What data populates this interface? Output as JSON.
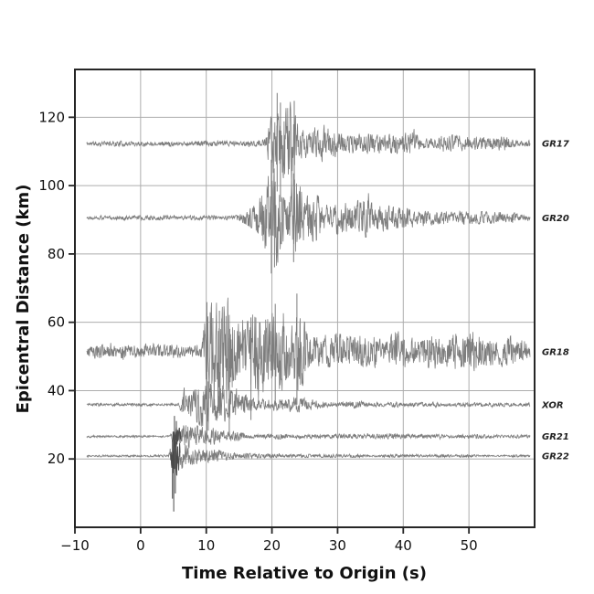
{
  "chart_data": {
    "type": "line",
    "variant": "seismic-record-section",
    "title": "",
    "xlabel": "Time Relative to Origin (s)",
    "ylabel": "Epicentral Distance (km)",
    "xlim": [
      -10,
      60
    ],
    "ylim": [
      0,
      134
    ],
    "xticks": [
      -10,
      0,
      10,
      20,
      30,
      40,
      50
    ],
    "yticks": [
      20,
      40,
      60,
      80,
      100,
      120
    ],
    "grid": true,
    "legend_position": "none",
    "colors": {
      "trace": "#7d7d7d",
      "trace_dark": "#4b4b4b",
      "grid": "#adadad",
      "spine": "#262626",
      "text": "#111111"
    },
    "stations": [
      {
        "name": "GR17",
        "distance_km": 112.3,
        "p_arrival_s": 19.5,
        "trace_window": [
          -8.2,
          59.3
        ],
        "seed": 11,
        "envelope": [
          [
            -8.2,
            0.7
          ],
          [
            17.5,
            0.7
          ],
          [
            19.0,
            1.2
          ],
          [
            19.6,
            5.0
          ],
          [
            20.3,
            11.5
          ],
          [
            21.2,
            13.5
          ],
          [
            22.0,
            10.0
          ],
          [
            23.2,
            11.5
          ],
          [
            24.2,
            7.5
          ],
          [
            25.5,
            5.5
          ],
          [
            27.0,
            5.0
          ],
          [
            29.0,
            4.8
          ],
          [
            30.5,
            3.6
          ],
          [
            32.0,
            2.6
          ],
          [
            33.5,
            3.2
          ],
          [
            35.5,
            2.8
          ],
          [
            37.5,
            2.4
          ],
          [
            39.5,
            3.0
          ],
          [
            41.5,
            3.0
          ],
          [
            43.5,
            2.2
          ],
          [
            45.5,
            2.0
          ],
          [
            47.5,
            2.3
          ],
          [
            50.0,
            1.9
          ],
          [
            52.5,
            1.7
          ],
          [
            55.0,
            1.8
          ],
          [
            57.0,
            1.4
          ],
          [
            59.3,
            1.1
          ]
        ],
        "spikes": [
          [
            20.8,
            14.8,
            -14.0
          ],
          [
            21.3,
            12.0,
            -17.0
          ],
          [
            23.4,
            12.5,
            -12.5
          ]
        ]
      },
      {
        "name": "GR20",
        "distance_km": 90.6,
        "p_arrival_s": 16.0,
        "trace_window": [
          -8.2,
          59.3
        ],
        "seed": 22,
        "envelope": [
          [
            -8.2,
            0.6
          ],
          [
            14.0,
            0.6
          ],
          [
            15.5,
            1.2
          ],
          [
            17.0,
            2.8
          ],
          [
            18.3,
            6.0
          ],
          [
            19.3,
            10.5
          ],
          [
            20.2,
            13.0
          ],
          [
            21.3,
            12.0
          ],
          [
            22.5,
            9.5
          ],
          [
            23.5,
            10.0
          ],
          [
            24.8,
            7.0
          ],
          [
            26.5,
            6.0
          ],
          [
            28.5,
            5.0
          ],
          [
            30.5,
            4.6
          ],
          [
            32.5,
            4.2
          ],
          [
            34.0,
            5.2
          ],
          [
            35.8,
            4.5
          ],
          [
            37.5,
            3.2
          ],
          [
            39.5,
            2.6
          ],
          [
            41.5,
            2.4
          ],
          [
            43.5,
            2.8
          ],
          [
            45.5,
            2.0
          ],
          [
            48.0,
            1.8
          ],
          [
            51.0,
            1.7
          ],
          [
            54.0,
            1.5
          ],
          [
            57.0,
            1.3
          ],
          [
            59.3,
            1.1
          ]
        ],
        "spikes": [
          [
            19.9,
            17.0,
            -16.3
          ],
          [
            20.4,
            9.5,
            -14.5
          ],
          [
            23.3,
            13.0,
            -13.0
          ]
        ]
      },
      {
        "name": "GR18",
        "distance_km": 51.4,
        "p_arrival_s": 9.6,
        "trace_window": [
          -8.2,
          59.3
        ],
        "seed": 33,
        "envelope": [
          [
            -8.2,
            1.7
          ],
          [
            -6.0,
            1.9
          ],
          [
            -4.0,
            2.3
          ],
          [
            -2.5,
            2.9
          ],
          [
            -1.0,
            2.4
          ],
          [
            0.5,
            2.6
          ],
          [
            2.0,
            2.8
          ],
          [
            3.5,
            2.3
          ],
          [
            5.0,
            2.0
          ],
          [
            6.5,
            1.9
          ],
          [
            8.0,
            1.7
          ],
          [
            9.2,
            1.9
          ],
          [
            9.7,
            7.0
          ],
          [
            10.3,
            12.0
          ],
          [
            11.2,
            13.5
          ],
          [
            12.2,
            11.5
          ],
          [
            13.3,
            14.0
          ],
          [
            14.3,
            11.0
          ],
          [
            15.3,
            12.5
          ],
          [
            16.3,
            13.8
          ],
          [
            17.3,
            12.0
          ],
          [
            18.3,
            12.8
          ],
          [
            19.3,
            13.5
          ],
          [
            20.3,
            12.0
          ],
          [
            21.3,
            10.5
          ],
          [
            22.3,
            11.5
          ],
          [
            23.3,
            13.0
          ],
          [
            23.9,
            15.5
          ],
          [
            24.8,
            8.0
          ],
          [
            26.0,
            6.2
          ],
          [
            27.5,
            5.6
          ],
          [
            29.0,
            5.0
          ],
          [
            30.5,
            4.6
          ],
          [
            32.0,
            5.2
          ],
          [
            33.5,
            5.6
          ],
          [
            35.0,
            4.8
          ],
          [
            36.5,
            4.4
          ],
          [
            38.0,
            5.0
          ],
          [
            39.5,
            5.4
          ],
          [
            41.0,
            5.0
          ],
          [
            42.5,
            4.4
          ],
          [
            44.0,
            4.2
          ],
          [
            45.5,
            4.6
          ],
          [
            47.0,
            5.0
          ],
          [
            48.5,
            5.2
          ],
          [
            50.0,
            5.4
          ],
          [
            51.5,
            4.8
          ],
          [
            53.0,
            4.2
          ],
          [
            54.5,
            4.6
          ],
          [
            56.0,
            4.8
          ],
          [
            57.5,
            3.6
          ],
          [
            58.5,
            2.8
          ],
          [
            59.3,
            2.2
          ]
        ],
        "spikes": [
          [
            10.1,
            14.5,
            -25.0
          ],
          [
            12.0,
            12.0,
            -18.0
          ],
          [
            13.5,
            4.0,
            -24.5
          ],
          [
            16.8,
            10.0,
            -20.0
          ],
          [
            20.5,
            14.0,
            -16.0
          ],
          [
            23.8,
            17.0,
            -15.5
          ]
        ]
      },
      {
        "name": "XOR",
        "distance_km": 35.9,
        "p_arrival_s": 6.2,
        "trace_window": [
          -8.2,
          59.3
        ],
        "seed": 44,
        "envelope": [
          [
            -8.2,
            0.4
          ],
          [
            5.6,
            0.45
          ],
          [
            6.1,
            1.8
          ],
          [
            6.6,
            5.0
          ],
          [
            7.4,
            5.8
          ],
          [
            8.2,
            5.0
          ],
          [
            9.0,
            6.0
          ],
          [
            9.8,
            5.2
          ],
          [
            10.6,
            6.2
          ],
          [
            11.4,
            4.8
          ],
          [
            12.2,
            5.5
          ],
          [
            13.0,
            4.2
          ],
          [
            14.0,
            3.4
          ],
          [
            15.5,
            3.0
          ],
          [
            17.0,
            2.8
          ],
          [
            18.5,
            2.6
          ],
          [
            20.0,
            2.2
          ],
          [
            21.5,
            1.9
          ],
          [
            23.0,
            1.8
          ],
          [
            24.3,
            2.4
          ],
          [
            25.5,
            1.6
          ],
          [
            27.0,
            1.1
          ],
          [
            29.0,
            0.9
          ],
          [
            31.0,
            0.8
          ],
          [
            33.0,
            1.0
          ],
          [
            35.0,
            0.8
          ],
          [
            37.0,
            0.7
          ],
          [
            39.0,
            0.9
          ],
          [
            41.0,
            0.7
          ],
          [
            43.0,
            0.6
          ],
          [
            45.0,
            0.7
          ],
          [
            47.0,
            0.6
          ],
          [
            50.0,
            0.55
          ],
          [
            53.0,
            0.5
          ],
          [
            56.0,
            0.5
          ],
          [
            59.3,
            0.45
          ]
        ],
        "spikes": [
          [
            10.3,
            6.8,
            -7.6
          ]
        ]
      },
      {
        "name": "GR21",
        "distance_km": 26.6,
        "p_arrival_s": 4.9,
        "trace_window": [
          -8.2,
          59.3
        ],
        "seed": 55,
        "dark_window": [
          4.8,
          6.1
        ],
        "envelope": [
          [
            -8.2,
            0.32
          ],
          [
            4.4,
            0.32
          ],
          [
            4.9,
            2.5
          ],
          [
            5.3,
            5.5
          ],
          [
            5.9,
            4.5
          ],
          [
            6.6,
            3.2
          ],
          [
            7.4,
            3.0
          ],
          [
            8.2,
            3.4
          ],
          [
            9.0,
            3.0
          ],
          [
            9.8,
            3.4
          ],
          [
            10.6,
            3.1
          ],
          [
            11.4,
            2.7
          ],
          [
            12.2,
            2.3
          ],
          [
            13.0,
            1.8
          ],
          [
            14.0,
            1.3
          ],
          [
            15.0,
            1.0
          ],
          [
            16.5,
            0.8
          ],
          [
            18.0,
            0.85
          ],
          [
            20.0,
            0.7
          ],
          [
            22.0,
            0.75
          ],
          [
            24.0,
            0.65
          ],
          [
            26.5,
            0.6
          ],
          [
            29.0,
            0.65
          ],
          [
            31.5,
            0.6
          ],
          [
            34.0,
            0.6
          ],
          [
            36.5,
            0.65
          ],
          [
            39.0,
            0.6
          ],
          [
            41.5,
            0.55
          ],
          [
            44.0,
            0.6
          ],
          [
            46.5,
            0.5
          ],
          [
            49.0,
            0.55
          ],
          [
            52.0,
            0.5
          ],
          [
            55.0,
            0.45
          ],
          [
            59.3,
            0.45
          ]
        ],
        "spikes": [
          [
            5.15,
            6.0,
            -9.5
          ],
          [
            5.45,
            4.5,
            -8.0
          ]
        ]
      },
      {
        "name": "GR22",
        "distance_km": 20.9,
        "p_arrival_s": 4.7,
        "trace_window": [
          -8.2,
          59.3
        ],
        "seed": 66,
        "dark_window": [
          4.5,
          6.0
        ],
        "envelope": [
          [
            -8.2,
            0.28
          ],
          [
            4.2,
            0.28
          ],
          [
            4.7,
            3.5
          ],
          [
            5.1,
            6.5
          ],
          [
            5.7,
            4.5
          ],
          [
            6.4,
            3.2
          ],
          [
            7.2,
            2.6
          ],
          [
            8.2,
            2.2
          ],
          [
            9.4,
            2.0
          ],
          [
            10.6,
            1.8
          ],
          [
            12.0,
            1.4
          ],
          [
            13.5,
            1.0
          ],
          [
            15.0,
            0.8
          ],
          [
            17.0,
            0.6
          ],
          [
            19.5,
            0.5
          ],
          [
            22.0,
            0.5
          ],
          [
            25.0,
            0.45
          ],
          [
            28.0,
            0.45
          ],
          [
            31.0,
            0.4
          ],
          [
            34.0,
            0.45
          ],
          [
            37.0,
            0.4
          ],
          [
            40.0,
            0.4
          ],
          [
            43.0,
            0.35
          ],
          [
            46.0,
            0.4
          ],
          [
            49.0,
            0.35
          ],
          [
            52.0,
            0.35
          ],
          [
            55.0,
            0.3
          ],
          [
            59.3,
            0.3
          ]
        ],
        "spikes": [
          [
            4.85,
            4.5,
            -12.5
          ],
          [
            5.05,
            6.0,
            -16.3
          ],
          [
            5.3,
            3.5,
            -11.0
          ]
        ]
      }
    ]
  }
}
